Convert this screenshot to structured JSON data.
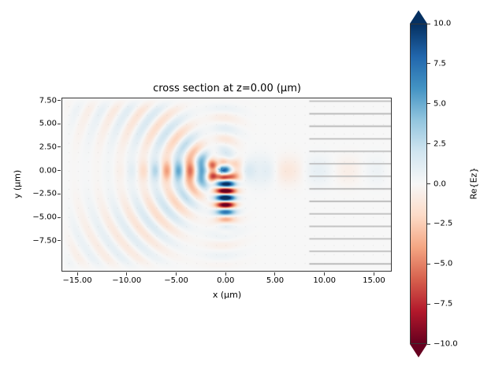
{
  "chart_data": {
    "type": "heatmap",
    "title": "cross section at z=0.00 (μm)",
    "xlabel": "x (μm)",
    "ylabel": "y (μm)",
    "xlim": [
      -16.6,
      16.8
    ],
    "ylim": [
      -10.8,
      7.8
    ],
    "grid": false,
    "x_ticks": [
      {
        "value": -15,
        "label": "−15.00"
      },
      {
        "value": -10,
        "label": "−10.00"
      },
      {
        "value": -5,
        "label": "−5.00"
      },
      {
        "value": 0,
        "label": "0.00"
      },
      {
        "value": 5,
        "label": "5.00"
      },
      {
        "value": 10,
        "label": "10.00"
      },
      {
        "value": 15,
        "label": "15.00"
      }
    ],
    "y_ticks": [
      {
        "value": 7.5,
        "label": "7.50"
      },
      {
        "value": 5,
        "label": "5.00"
      },
      {
        "value": 2.5,
        "label": "2.50"
      },
      {
        "value": 0,
        "label": "0.00"
      },
      {
        "value": -2.5,
        "label": "−2.50"
      },
      {
        "value": -5,
        "label": "−5.00"
      },
      {
        "value": -7.5,
        "label": "−7.50"
      }
    ],
    "colormap": {
      "name": "RdBu",
      "stops": [
        {
          "t": 0.0,
          "color": "#67001f"
        },
        {
          "t": 0.1,
          "color": "#b2182b"
        },
        {
          "t": 0.2,
          "color": "#d6604d"
        },
        {
          "t": 0.3,
          "color": "#f4a582"
        },
        {
          "t": 0.4,
          "color": "#fddbc7"
        },
        {
          "t": 0.5,
          "color": "#f7f7f7"
        },
        {
          "t": 0.6,
          "color": "#d1e5f0"
        },
        {
          "t": 0.7,
          "color": "#92c5de"
        },
        {
          "t": 0.8,
          "color": "#4393c3"
        },
        {
          "t": 0.9,
          "color": "#2166ac"
        },
        {
          "t": 1.0,
          "color": "#053061"
        }
      ]
    },
    "colorbar": {
      "label": "Re{Ez}",
      "vmin": -10.0,
      "vmax": 10.0,
      "extend": "both",
      "ticks": [
        {
          "value": 10.0,
          "label": "10.0"
        },
        {
          "value": 7.5,
          "label": "7.5"
        },
        {
          "value": 5.0,
          "label": "5.0"
        },
        {
          "value": 2.5,
          "label": "2.5"
        },
        {
          "value": 0.0,
          "label": "0.0"
        },
        {
          "value": -2.5,
          "label": "−2.5"
        },
        {
          "value": -5.0,
          "label": "−5.0"
        },
        {
          "value": -7.5,
          "label": "−7.5"
        },
        {
          "value": -10.0,
          "label": "−10.0"
        }
      ]
    },
    "structure_overlay": {
      "description": "horizontal gray lines marking a layered structure on the right side of the domain",
      "x_start": 8.5,
      "x_end": 16.8,
      "y_top": 7.5,
      "spacing": 1.35,
      "count": 14,
      "color": "#b3b3b3"
    },
    "dot_grid": {
      "description": "faint grid-sampling dots over the whole plot",
      "spacing": 1.0,
      "color": "rgba(90,90,90,0.13)"
    },
    "field_model": {
      "description": "qualitative Re{Ez} field: guided mode along y=0 entering from the left as a standing wave, strong saturated vertical multi-lobe scattering column at x≈0 below the axis, lobed back-scattered interference fan filling the left half, weak transmission along y=0 into the layered region on the right",
      "components": {
        "guided_mode": {
          "amplitude": 5.5,
          "y_sigma": 1.1,
          "period_x": 2.4,
          "center_x": -3.5,
          "x_sigma": 4.5
        },
        "back_scatter": {
          "amplitude": 4.2,
          "period_r": 2.3,
          "decay": 9.0,
          "lobes": 5,
          "center_x": -0.5,
          "center_y": 0.0
        },
        "vertical_lobes": {
          "amplitude": 14.0,
          "period_y": 1.55,
          "phase_y": 0.15,
          "x_center": 0.0,
          "x_sigma": 0.95,
          "y_center": -2.4,
          "y_sigma": 2.4
        },
        "transmitted": {
          "amplitude": 1.6,
          "period_x": 6.0,
          "peak_x": 3.5,
          "y_sigma": 1.5,
          "decay_x": 12.0
        }
      }
    }
  }
}
